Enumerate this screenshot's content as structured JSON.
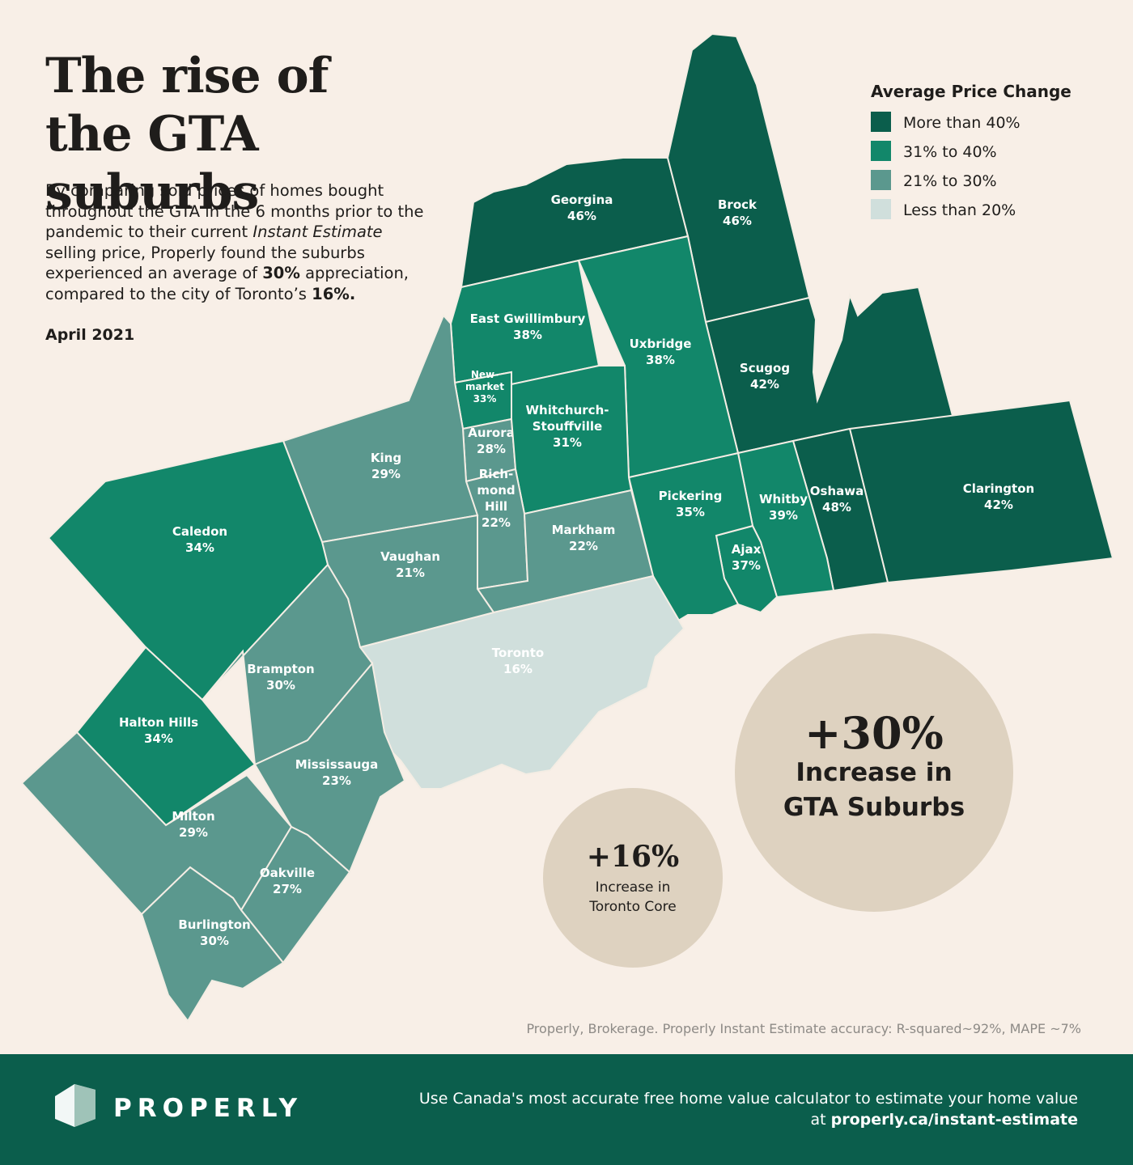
{
  "header": {
    "title": "The rise of the GTA suburbs",
    "intro": [
      {
        "text": "By comparing sold prices of homes bought throughout the GTA in the 6 months prior to the pandemic to their current ",
        "style": "normal"
      },
      {
        "text": "Instant Estimate",
        "style": "italic"
      },
      {
        "text": " selling price, Properly found the suburbs experienced an average of ",
        "style": "normal"
      },
      {
        "text": "30%",
        "style": "bold"
      },
      {
        "text": " appreciation, compared to the city of Toronto’s ",
        "style": "normal"
      },
      {
        "text": "16%.",
        "style": "bold"
      }
    ],
    "date": "April 2021"
  },
  "legend": {
    "title": "Average Price Change",
    "items": [
      {
        "label": "More than 40%",
        "color": "#0b5e4c"
      },
      {
        "label": "31% to 40%",
        "color": "#12876a"
      },
      {
        "label": "21% to 30%",
        "color": "#5b988e"
      },
      {
        "label": "Less than 20%",
        "color": "#d0dfdc"
      }
    ]
  },
  "regions": [
    {
      "name": [
        "Georgina"
      ],
      "value": 46,
      "label": "46%",
      "color": "#0b5e4c"
    },
    {
      "name": [
        "Brock"
      ],
      "value": 46,
      "label": "46%",
      "color": "#0b5e4c"
    },
    {
      "name": [
        "Scugog"
      ],
      "value": 42,
      "label": "42%",
      "color": "#0b5e4c"
    },
    {
      "name": [
        "Clarington"
      ],
      "value": 42,
      "label": "42%",
      "color": "#0b5e4c"
    },
    {
      "name": [
        "Oshawa"
      ],
      "value": 48,
      "label": "48%",
      "color": "#0b5e4c"
    },
    {
      "name": [
        "Whitby"
      ],
      "value": 39,
      "label": "39%",
      "color": "#12876a"
    },
    {
      "name": [
        "Ajax"
      ],
      "value": 37,
      "label": "37%",
      "color": "#12876a"
    },
    {
      "name": [
        "Pickering"
      ],
      "value": 35,
      "label": "35%",
      "color": "#12876a"
    },
    {
      "name": [
        "Uxbridge"
      ],
      "value": 38,
      "label": "38%",
      "color": "#12876a"
    },
    {
      "name": [
        "East Gwillimbury"
      ],
      "value": 38,
      "label": "38%",
      "color": "#12876a"
    },
    {
      "name": [
        "New-",
        "market"
      ],
      "value": 33,
      "label": "33%",
      "color": "#12876a"
    },
    {
      "name": [
        "Aurora"
      ],
      "value": 28,
      "label": "28%",
      "color": "#5b988e"
    },
    {
      "name": [
        "Whitchurch-",
        "Stouffville"
      ],
      "value": 31,
      "label": "31%",
      "color": "#12876a"
    },
    {
      "name": [
        "Rich-",
        "mond",
        "Hill"
      ],
      "value": 22,
      "label": "22%",
      "color": "#5b988e"
    },
    {
      "name": [
        "Markham"
      ],
      "value": 22,
      "label": "22%",
      "color": "#5b988e"
    },
    {
      "name": [
        "Toronto"
      ],
      "value": 16,
      "label": "16%",
      "color": "#d0dfdc"
    },
    {
      "name": [
        "King"
      ],
      "value": 29,
      "label": "29%",
      "color": "#5b988e"
    },
    {
      "name": [
        "Vaughan"
      ],
      "value": 21,
      "label": "21%",
      "color": "#5b988e"
    },
    {
      "name": [
        "Caledon"
      ],
      "value": 34,
      "label": "34%",
      "color": "#12876a"
    },
    {
      "name": [
        "Brampton"
      ],
      "value": 30,
      "label": "30%",
      "color": "#5b988e"
    },
    {
      "name": [
        "Halton Hills"
      ],
      "value": 34,
      "label": "34%",
      "color": "#12876a"
    },
    {
      "name": [
        "Mississauga"
      ],
      "value": 23,
      "label": "23%",
      "color": "#5b988e"
    },
    {
      "name": [
        "Milton"
      ],
      "value": 29,
      "label": "29%",
      "color": "#5b988e"
    },
    {
      "name": [
        "Oakville"
      ],
      "value": 27,
      "label": "27%",
      "color": "#5b988e"
    },
    {
      "name": [
        "Burlington"
      ],
      "value": 30,
      "label": "30%",
      "color": "#5b988e"
    }
  ],
  "callouts": [
    {
      "figure": "+30%",
      "lines": [
        "Increase in",
        "GTA Suburbs"
      ]
    },
    {
      "figure": "+16%",
      "lines": [
        "Increase in",
        "Toronto Core"
      ]
    }
  ],
  "source": "Properly, Brokerage. Properly Instant Estimate accuracy: R-squared~92%, MAPE ~7%",
  "footer": {
    "brand": "PROPERLY",
    "cta_line1": "Use Canada's most accurate free home value calculator to estimate your home value",
    "cta_prefix": "at",
    "cta_link": "properly.ca/instant-estimate"
  }
}
